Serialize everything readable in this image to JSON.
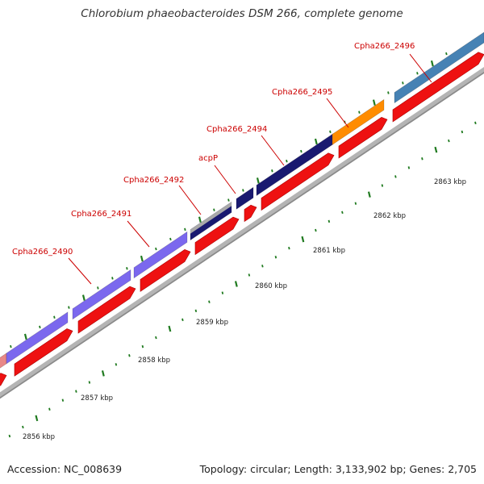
{
  "title": "Chlorobium phaeobacteroides DSM 266, complete genome",
  "footer": {
    "accession": "Accession: NC_008639",
    "summary": "Topology: circular; Length: 3,133,902 bp; Genes: 2,705"
  },
  "scale_labels": [
    "2856 kbp",
    "2857 kbp",
    "2858 kbp",
    "2859 kbp",
    "2860 kbp",
    "2861 kbp",
    "2862 kbp",
    "2863 kbp"
  ],
  "gene_labels": [
    "Cpha266_2490",
    "Cpha266_2491",
    "Cpha266_2492",
    "acpP",
    "Cpha266_2494",
    "Cpha266_2495",
    "Cpha266_2496"
  ],
  "colors": {
    "cds_forward": "#ee1111",
    "gene_slateblue": "#7b68ee",
    "gene_navy": "#191970",
    "gene_gray": "#a9a9a9",
    "gene_orange": "#ff8c00",
    "gene_steelblue": "#4682b4",
    "gene_pink": "#e88888",
    "backbone": "#a0a0a0",
    "tick_green": "#1f7a1f",
    "label_red": "#cc0000"
  }
}
